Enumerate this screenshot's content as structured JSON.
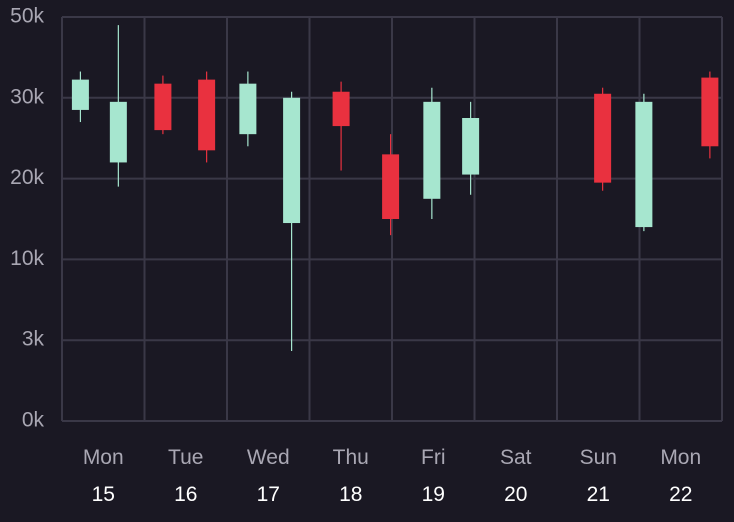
{
  "colors": {
    "background": "#1a1823",
    "grid": "#3a3847",
    "up": "#a6e6cf",
    "down": "#e9313f",
    "label": "#a9a7b3",
    "label_strong": "#ffffff"
  },
  "chart_data": {
    "type": "candlestick",
    "title": "",
    "xlabel": "",
    "ylabel": "",
    "ylim": [
      0,
      50000
    ],
    "y_ticks": [
      {
        "label": "0k",
        "value": 0
      },
      {
        "label": "3k",
        "value": 3000
      },
      {
        "label": "10k",
        "value": 10000
      },
      {
        "label": "20k",
        "value": 20000
      },
      {
        "label": "30k",
        "value": 30000
      },
      {
        "label": "50k",
        "value": 50000
      }
    ],
    "days": [
      {
        "name": "Mon",
        "num": "15"
      },
      {
        "name": "Tue",
        "num": "16"
      },
      {
        "name": "Wed",
        "num": "17"
      },
      {
        "name": "Thu",
        "num": "18"
      },
      {
        "name": "Fri",
        "num": "19"
      },
      {
        "name": "Sat",
        "num": "20"
      },
      {
        "name": "Sun",
        "num": "21"
      },
      {
        "name": "Mon",
        "num": "22"
      }
    ],
    "grid": true,
    "candles": [
      {
        "day_pos": 0.12,
        "open": 28500,
        "close": 34500,
        "high": 36500,
        "low": 27000
      },
      {
        "day_pos": 0.58,
        "open": 22000,
        "close": 29500,
        "high": 48000,
        "low": 19000
      },
      {
        "day_pos": 1.12,
        "open": 33500,
        "close": 26000,
        "high": 35500,
        "low": 25500
      },
      {
        "day_pos": 1.65,
        "open": 34500,
        "close": 23500,
        "high": 36500,
        "low": 22000
      },
      {
        "day_pos": 2.15,
        "open": 25500,
        "close": 33500,
        "high": 36500,
        "low": 24000
      },
      {
        "day_pos": 2.68,
        "open": 14500,
        "close": 30000,
        "high": 31500,
        "low": 2600
      },
      {
        "day_pos": 3.28,
        "open": 31500,
        "close": 26500,
        "high": 34000,
        "low": 21000
      },
      {
        "day_pos": 3.88,
        "open": 23000,
        "close": 15000,
        "high": 25500,
        "low": 13000
      },
      {
        "day_pos": 4.38,
        "open": 17500,
        "close": 29500,
        "high": 32500,
        "low": 15000
      },
      {
        "day_pos": 4.85,
        "open": 20500,
        "close": 27500,
        "high": 29500,
        "low": 18000
      },
      {
        "day_pos": 6.45,
        "open": 31000,
        "close": 19500,
        "high": 32500,
        "low": 18500
      },
      {
        "day_pos": 6.95,
        "open": 14000,
        "close": 29500,
        "high": 31000,
        "low": 13500
      },
      {
        "day_pos": 7.75,
        "open": 35000,
        "close": 24000,
        "high": 36500,
        "low": 22500
      }
    ]
  }
}
